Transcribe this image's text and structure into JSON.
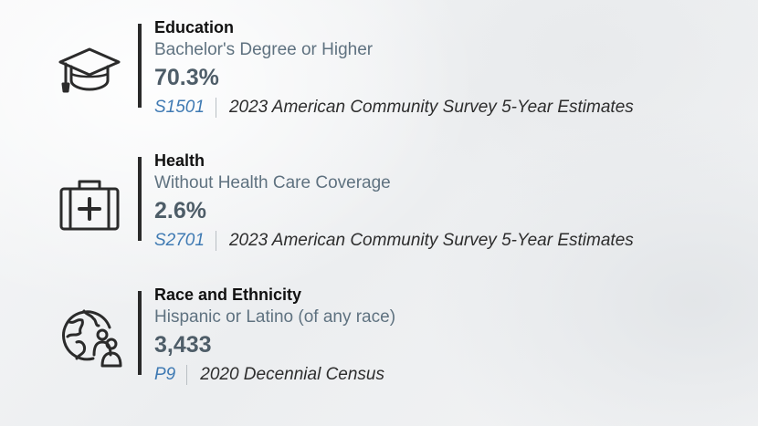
{
  "cards": [
    {
      "icon": "graduation-cap-icon",
      "title": "Education",
      "subtitle": "Bachelor's Degree or Higher",
      "value": "70.3%",
      "source_code": "S1501",
      "source_survey": "2023 American Community Survey 5-Year Estimates"
    },
    {
      "icon": "medical-kit-icon",
      "title": "Health",
      "subtitle": "Without Health Care Coverage",
      "value": "2.6%",
      "source_code": "S2701",
      "source_survey": "2023 American Community Survey 5-Year Estimates"
    },
    {
      "icon": "globe-people-icon",
      "title": "Race and Ethnicity",
      "subtitle": "Hispanic or Latino (of any race)",
      "value": "3,433",
      "source_code": "P9",
      "source_survey": "2020 Decennial Census"
    }
  ],
  "colors": {
    "title": "#111111",
    "subtitle": "#5f7280",
    "value": "#4e5d68",
    "link": "#3f7ab3",
    "rule": "#2a2a2a"
  }
}
